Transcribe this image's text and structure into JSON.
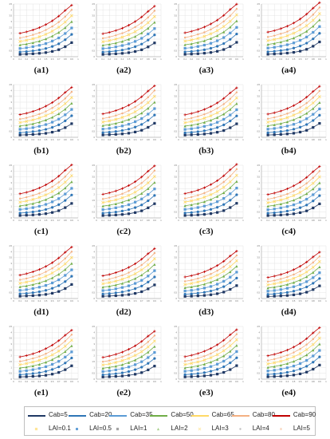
{
  "panels": [
    {
      "label": "(a1)",
      "rows": 4,
      "scale": 1.0
    },
    {
      "label": "(a2)",
      "rows": 4,
      "scale": 0.98
    },
    {
      "label": "(a3)",
      "rows": 4,
      "scale": 1.02
    },
    {
      "label": "(a4)",
      "rows": 4,
      "scale": 1.05
    },
    {
      "label": "(b1)",
      "rows": 3,
      "scale": 0.97
    },
    {
      "label": "(b2)",
      "rows": 3,
      "scale": 1.0
    },
    {
      "label": "(b3)",
      "rows": 3,
      "scale": 0.96
    },
    {
      "label": "(b4)",
      "rows": 3,
      "scale": 0.99
    },
    {
      "label": "(c1)",
      "rows": 2,
      "scale": 1.03
    },
    {
      "label": "(c2)",
      "rows": 2,
      "scale": 1.01
    },
    {
      "label": "(c3)",
      "rows": 2,
      "scale": 1.04
    },
    {
      "label": "(c4)",
      "rows": 2,
      "scale": 1.0
    },
    {
      "label": "(d1)",
      "rows": 1,
      "scale": 1.0
    },
    {
      "label": "(d2)",
      "rows": 1,
      "scale": 0.97
    },
    {
      "label": "(d3)",
      "rows": 1,
      "scale": 0.92
    },
    {
      "label": "(d4)",
      "rows": 1,
      "scale": 0.9
    },
    {
      "label": "(e1)",
      "rows": 0,
      "scale": 0.95
    },
    {
      "label": "(e2)",
      "rows": 0,
      "scale": 0.93
    },
    {
      "label": "(e3)",
      "rows": 0,
      "scale": 0.96
    },
    {
      "label": "(e4)",
      "rows": 0,
      "scale": 1.0
    }
  ],
  "legend": {
    "cab": [
      {
        "label": "Cab=5",
        "color": "#1f3864"
      },
      {
        "label": "Cab=20",
        "color": "#2e75b6"
      },
      {
        "label": "Cab=35",
        "color": "#5b9bd5"
      },
      {
        "label": "Cab=50",
        "color": "#70ad47"
      },
      {
        "label": "Cab=65",
        "color": "#ffd966"
      },
      {
        "label": "Cab=80",
        "color": "#f4b183"
      },
      {
        "label": "Cab=90",
        "color": "#c00000"
      }
    ],
    "lai": [
      {
        "label": "LAI=0.1",
        "color": "#ffe699",
        "marker": "square"
      },
      {
        "label": "LAI=0.5",
        "color": "#5b9bd5",
        "marker": "circle"
      },
      {
        "label": "LAI=1",
        "color": "#a5a5a5",
        "marker": "square"
      },
      {
        "label": "LAI=2",
        "color": "#a9d18e",
        "marker": "triangle"
      },
      {
        "label": "LAI=3",
        "color": "#ffe699",
        "marker": "cross"
      },
      {
        "label": "LAI=4",
        "color": "#bfbfbf",
        "marker": "dot"
      },
      {
        "label": "LAI=5",
        "color": "#f8cbad",
        "marker": "plus"
      }
    ]
  },
  "chart_data": {
    "type": "line",
    "xlabel": "",
    "ylabel": "",
    "xlim": [
      0,
      1
    ],
    "ylim": [
      0,
      4.5
    ],
    "grid": true,
    "legend_position": "bottom",
    "xtick_labels": [
      "0",
      "0.1",
      "0.2",
      "0.3",
      "0.4",
      "0.5",
      "0.6",
      "0.7",
      "0.8",
      "0.9",
      "1"
    ],
    "ytick_labels": [
      "0",
      "0.5",
      "1",
      "1.5",
      "2",
      "2.5",
      "3",
      "3.5",
      "4",
      "4.5"
    ],
    "x": [
      0.1,
      0.2,
      0.3,
      0.4,
      0.5,
      0.6,
      0.7,
      0.8,
      0.9
    ],
    "series": [
      {
        "name": "Cab=5",
        "values": [
          0.2,
          0.22,
          0.25,
          0.29,
          0.35,
          0.45,
          0.6,
          0.85,
          1.2
        ]
      },
      {
        "name": "Cab=20",
        "values": [
          0.4,
          0.44,
          0.5,
          0.58,
          0.7,
          0.87,
          1.1,
          1.45,
          1.9
        ]
      },
      {
        "name": "Cab=35",
        "values": [
          0.7,
          0.76,
          0.85,
          0.97,
          1.12,
          1.33,
          1.6,
          1.98,
          2.45
        ]
      },
      {
        "name": "Cab=50",
        "values": [
          1.0,
          1.08,
          1.19,
          1.33,
          1.52,
          1.76,
          2.07,
          2.48,
          3.0
        ]
      },
      {
        "name": "Cab=65",
        "values": [
          1.3,
          1.4,
          1.53,
          1.7,
          1.91,
          2.18,
          2.52,
          2.96,
          3.5
        ]
      },
      {
        "name": "Cab=80",
        "values": [
          1.6,
          1.71,
          1.86,
          2.04,
          2.28,
          2.58,
          2.95,
          3.42,
          4.0
        ]
      },
      {
        "name": "Cab=90",
        "values": [
          2.0,
          2.12,
          2.28,
          2.48,
          2.74,
          3.06,
          3.46,
          3.95,
          4.4
        ]
      }
    ]
  }
}
